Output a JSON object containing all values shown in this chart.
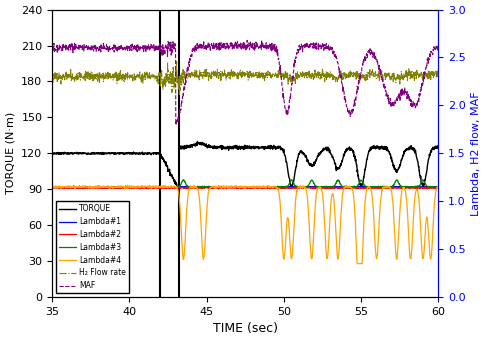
{
  "title": "",
  "xlabel": "TIME (sec)",
  "ylabel_left": "TORQUE (N·m)",
  "ylabel_right": "Lambda, H2 flow, MAF",
  "xlim": [
    35,
    60
  ],
  "ylim_left": [
    0,
    240
  ],
  "ylim_right": [
    0,
    3.0
  ],
  "yticks_left": [
    0,
    30,
    60,
    90,
    120,
    150,
    180,
    210,
    240
  ],
  "yticks_right": [
    0.0,
    0.5,
    1.0,
    1.5,
    2.0,
    2.5,
    3.0
  ],
  "xticks": [
    35,
    40,
    45,
    50,
    55,
    60
  ],
  "vline1": 42.0,
  "vline2": 43.2,
  "legend_labels": [
    "TORQUE",
    "Lambda#1",
    "Lambda#2",
    "Lambda#3",
    "Lambda#4",
    "H₂ Flow rate",
    "MAF"
  ],
  "background_color": "#ffffff",
  "torque_before": 120,
  "torque_after_base": 125,
  "lambda_base": 1.15,
  "h2flow_base": 2.32,
  "maf_base": 2.6
}
